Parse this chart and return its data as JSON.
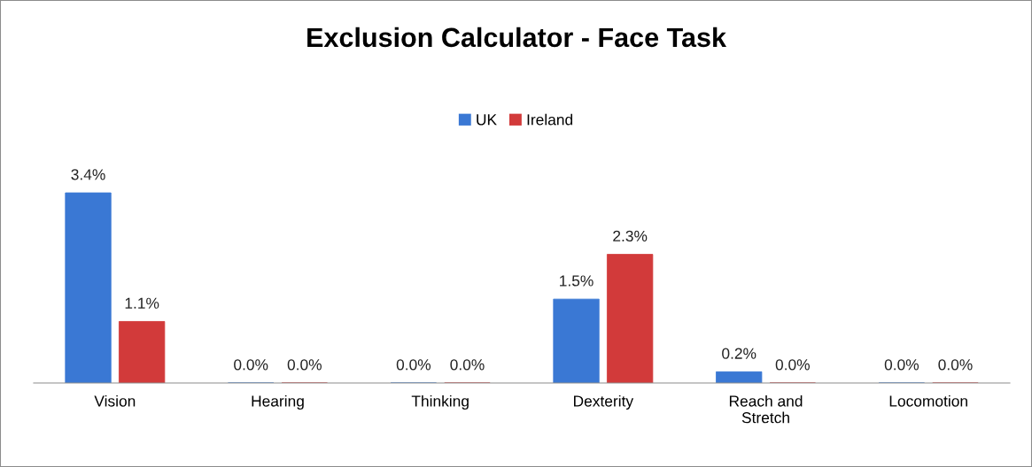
{
  "chart_data": {
    "type": "bar",
    "title": "Exclusion Calculator - Face Task",
    "categories": [
      "Vision",
      "Hearing",
      "Thinking",
      "Dexterity",
      "Reach and Stretch",
      "Locomotion"
    ],
    "series": [
      {
        "name": "UK",
        "color": "#3a78d4",
        "values": [
          3.4,
          0.0,
          0.0,
          1.5,
          0.2,
          0.0
        ],
        "value_labels": [
          "3.4%",
          "0.0%",
          "0.0%",
          "1.5%",
          "0.2%",
          "0.0%"
        ]
      },
      {
        "name": "Ireland",
        "color": "#d23a3a",
        "values": [
          1.1,
          0.0,
          0.0,
          2.3,
          0.0,
          0.0
        ],
        "value_labels": [
          "1.1%",
          "0.0%",
          "0.0%",
          "2.3%",
          "0.0%",
          "0.0%"
        ]
      }
    ],
    "legend": "top",
    "grid": false
  }
}
